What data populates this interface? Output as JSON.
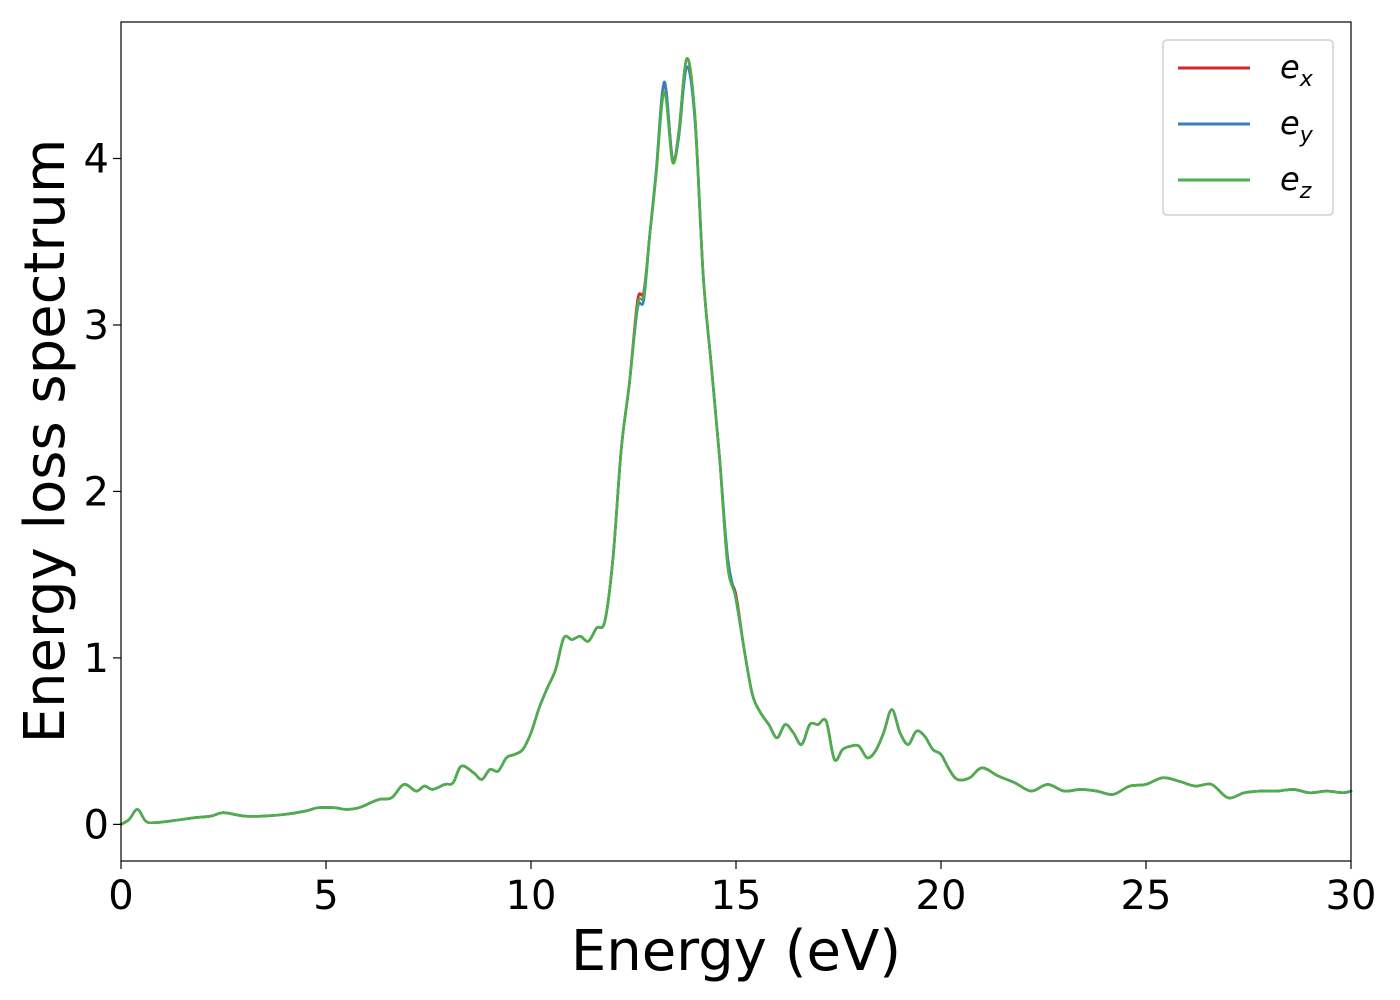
{
  "chart_data": {
    "type": "line",
    "title": "",
    "xlabel": "Energy (eV)",
    "ylabel": "Energy loss spectrum",
    "xlim": [
      0,
      30
    ],
    "ylim": [
      -0.22,
      4.82
    ],
    "xticks": [
      0,
      5,
      10,
      15,
      20,
      25,
      30
    ],
    "yticks": [
      0,
      1,
      2,
      3,
      4
    ],
    "grid": false,
    "legend_position": "top-right",
    "series": [
      {
        "name": "e_x",
        "base": "e",
        "sub": "x",
        "color": "#d62728",
        "x": [
          0,
          0.2,
          0.4,
          0.6,
          0.8,
          1.2,
          1.8,
          2.2,
          2.5,
          3.0,
          3.5,
          4.0,
          4.5,
          4.8,
          5.2,
          5.5,
          5.8,
          6.0,
          6.3,
          6.6,
          6.9,
          7.2,
          7.4,
          7.6,
          7.9,
          8.1,
          8.3,
          8.6,
          8.8,
          9.0,
          9.2,
          9.4,
          9.6,
          9.8,
          10.0,
          10.2,
          10.4,
          10.6,
          10.8,
          11.0,
          11.2,
          11.4,
          11.6,
          11.8,
          12.0,
          12.2,
          12.4,
          12.6,
          12.75,
          12.9,
          13.05,
          13.25,
          13.45,
          13.6,
          13.8,
          14.0,
          14.2,
          14.4,
          14.6,
          14.8,
          15.0,
          15.2,
          15.4,
          15.6,
          15.8,
          16.0,
          16.2,
          16.4,
          16.6,
          16.8,
          17.0,
          17.2,
          17.4,
          17.6,
          17.8,
          18.0,
          18.2,
          18.4,
          18.6,
          18.8,
          19.0,
          19.2,
          19.4,
          19.6,
          19.8,
          20.0,
          20.2,
          20.4,
          20.7,
          21.0,
          21.4,
          21.8,
          22.2,
          22.6,
          23.0,
          23.4,
          23.8,
          24.2,
          24.6,
          25.0,
          25.4,
          25.8,
          26.2,
          26.6,
          27.0,
          27.4,
          27.8,
          28.2,
          28.6,
          29.0,
          29.4,
          29.8,
          30.0
        ],
        "y": [
          0.0,
          0.03,
          0.09,
          0.02,
          0.01,
          0.02,
          0.04,
          0.05,
          0.07,
          0.05,
          0.05,
          0.06,
          0.08,
          0.1,
          0.1,
          0.09,
          0.1,
          0.12,
          0.15,
          0.16,
          0.24,
          0.2,
          0.23,
          0.21,
          0.24,
          0.25,
          0.35,
          0.31,
          0.27,
          0.33,
          0.32,
          0.4,
          0.42,
          0.45,
          0.55,
          0.7,
          0.82,
          0.93,
          1.12,
          1.11,
          1.13,
          1.1,
          1.18,
          1.22,
          1.6,
          2.25,
          2.65,
          3.15,
          3.2,
          3.55,
          3.9,
          4.45,
          4.0,
          4.15,
          4.6,
          4.25,
          3.3,
          2.75,
          2.2,
          1.55,
          1.38,
          1.05,
          0.78,
          0.67,
          0.6,
          0.52,
          0.6,
          0.55,
          0.48,
          0.6,
          0.6,
          0.62,
          0.39,
          0.45,
          0.47,
          0.47,
          0.4,
          0.44,
          0.55,
          0.69,
          0.55,
          0.48,
          0.56,
          0.53,
          0.45,
          0.42,
          0.33,
          0.27,
          0.28,
          0.34,
          0.29,
          0.25,
          0.2,
          0.24,
          0.2,
          0.21,
          0.2,
          0.18,
          0.23,
          0.24,
          0.28,
          0.26,
          0.23,
          0.24,
          0.16,
          0.19,
          0.2,
          0.2,
          0.21,
          0.19,
          0.2,
          0.19,
          0.2
        ]
      },
      {
        "name": "e_y",
        "base": "e",
        "sub": "y",
        "color": "#3a7fb8",
        "x": [
          0,
          0.2,
          0.4,
          0.6,
          0.8,
          1.2,
          1.8,
          2.2,
          2.5,
          3.0,
          3.5,
          4.0,
          4.5,
          4.8,
          5.2,
          5.5,
          5.8,
          6.0,
          6.3,
          6.6,
          6.9,
          7.2,
          7.4,
          7.6,
          7.9,
          8.1,
          8.3,
          8.6,
          8.8,
          9.0,
          9.2,
          9.4,
          9.6,
          9.8,
          10.0,
          10.2,
          10.4,
          10.6,
          10.8,
          11.0,
          11.2,
          11.4,
          11.6,
          11.8,
          12.0,
          12.2,
          12.4,
          12.6,
          12.75,
          12.9,
          13.05,
          13.25,
          13.45,
          13.6,
          13.8,
          14.0,
          14.2,
          14.4,
          14.6,
          14.8,
          15.0,
          15.2,
          15.4,
          15.6,
          15.8,
          16.0,
          16.2,
          16.4,
          16.6,
          16.8,
          17.0,
          17.2,
          17.4,
          17.6,
          17.8,
          18.0,
          18.2,
          18.4,
          18.6,
          18.8,
          19.0,
          19.2,
          19.4,
          19.6,
          19.8,
          20.0,
          20.2,
          20.4,
          20.7,
          21.0,
          21.4,
          21.8,
          22.2,
          22.6,
          23.0,
          23.4,
          23.8,
          24.2,
          24.6,
          25.0,
          25.4,
          25.8,
          26.2,
          26.6,
          27.0,
          27.4,
          27.8,
          28.2,
          28.6,
          29.0,
          29.4,
          29.8,
          30.0
        ],
        "y": [
          0.0,
          0.03,
          0.09,
          0.02,
          0.01,
          0.02,
          0.04,
          0.05,
          0.07,
          0.05,
          0.05,
          0.06,
          0.08,
          0.1,
          0.1,
          0.09,
          0.1,
          0.12,
          0.15,
          0.16,
          0.24,
          0.2,
          0.23,
          0.21,
          0.24,
          0.25,
          0.35,
          0.31,
          0.27,
          0.33,
          0.32,
          0.4,
          0.42,
          0.45,
          0.55,
          0.7,
          0.82,
          0.93,
          1.12,
          1.11,
          1.13,
          1.1,
          1.18,
          1.22,
          1.6,
          2.25,
          2.65,
          3.1,
          3.15,
          3.55,
          3.92,
          4.46,
          4.0,
          4.12,
          4.55,
          4.22,
          3.3,
          2.75,
          2.2,
          1.6,
          1.35,
          1.05,
          0.78,
          0.67,
          0.6,
          0.52,
          0.6,
          0.55,
          0.48,
          0.6,
          0.6,
          0.62,
          0.39,
          0.45,
          0.47,
          0.47,
          0.4,
          0.44,
          0.55,
          0.69,
          0.55,
          0.48,
          0.56,
          0.53,
          0.45,
          0.42,
          0.33,
          0.27,
          0.28,
          0.34,
          0.29,
          0.25,
          0.2,
          0.24,
          0.2,
          0.21,
          0.2,
          0.18,
          0.23,
          0.24,
          0.28,
          0.26,
          0.23,
          0.24,
          0.16,
          0.19,
          0.2,
          0.2,
          0.21,
          0.19,
          0.2,
          0.19,
          0.2
        ]
      },
      {
        "name": "e_z",
        "base": "e",
        "sub": "z",
        "color": "#4daf4a",
        "x": [
          0,
          0.2,
          0.4,
          0.6,
          0.8,
          1.2,
          1.8,
          2.2,
          2.5,
          3.0,
          3.5,
          4.0,
          4.5,
          4.8,
          5.2,
          5.5,
          5.8,
          6.0,
          6.3,
          6.6,
          6.9,
          7.2,
          7.4,
          7.6,
          7.9,
          8.1,
          8.3,
          8.6,
          8.8,
          9.0,
          9.2,
          9.4,
          9.6,
          9.8,
          10.0,
          10.2,
          10.4,
          10.6,
          10.8,
          11.0,
          11.2,
          11.4,
          11.6,
          11.8,
          12.0,
          12.2,
          12.4,
          12.6,
          12.75,
          12.9,
          13.05,
          13.25,
          13.45,
          13.6,
          13.8,
          14.0,
          14.2,
          14.4,
          14.6,
          14.8,
          15.0,
          15.2,
          15.4,
          15.6,
          15.8,
          16.0,
          16.2,
          16.4,
          16.6,
          16.8,
          17.0,
          17.2,
          17.4,
          17.6,
          17.8,
          18.0,
          18.2,
          18.4,
          18.6,
          18.8,
          19.0,
          19.2,
          19.4,
          19.6,
          19.8,
          20.0,
          20.2,
          20.4,
          20.7,
          21.0,
          21.4,
          21.8,
          22.2,
          22.6,
          23.0,
          23.4,
          23.8,
          24.2,
          24.6,
          25.0,
          25.4,
          25.8,
          26.2,
          26.6,
          27.0,
          27.4,
          27.8,
          28.2,
          28.6,
          29.0,
          29.4,
          29.8,
          30.0
        ],
        "y": [
          0.0,
          0.03,
          0.09,
          0.02,
          0.01,
          0.02,
          0.04,
          0.05,
          0.07,
          0.05,
          0.05,
          0.06,
          0.08,
          0.1,
          0.1,
          0.09,
          0.1,
          0.12,
          0.15,
          0.16,
          0.24,
          0.2,
          0.23,
          0.21,
          0.24,
          0.25,
          0.35,
          0.31,
          0.27,
          0.33,
          0.32,
          0.4,
          0.42,
          0.45,
          0.55,
          0.7,
          0.82,
          0.93,
          1.12,
          1.11,
          1.13,
          1.1,
          1.18,
          1.22,
          1.6,
          2.25,
          2.65,
          3.12,
          3.18,
          3.55,
          3.9,
          4.4,
          3.98,
          4.15,
          4.6,
          4.25,
          3.3,
          2.75,
          2.2,
          1.55,
          1.36,
          1.05,
          0.78,
          0.67,
          0.6,
          0.52,
          0.6,
          0.55,
          0.48,
          0.6,
          0.6,
          0.62,
          0.39,
          0.45,
          0.47,
          0.47,
          0.4,
          0.44,
          0.55,
          0.69,
          0.55,
          0.48,
          0.56,
          0.53,
          0.45,
          0.42,
          0.33,
          0.27,
          0.28,
          0.34,
          0.29,
          0.25,
          0.2,
          0.24,
          0.2,
          0.21,
          0.2,
          0.18,
          0.23,
          0.24,
          0.28,
          0.26,
          0.23,
          0.24,
          0.16,
          0.19,
          0.2,
          0.2,
          0.21,
          0.19,
          0.2,
          0.19,
          0.2
        ]
      }
    ]
  }
}
